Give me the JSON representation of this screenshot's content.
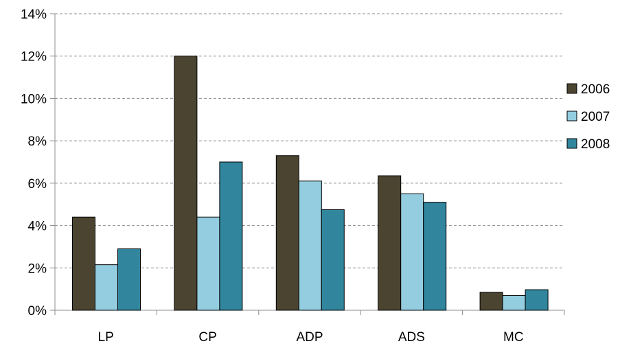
{
  "chart_data": {
    "type": "bar",
    "categories": [
      "LP",
      "CP",
      "ADP",
      "ADS",
      "MC"
    ],
    "series": [
      {
        "name": "2006",
        "values": [
          4.4,
          12.0,
          7.3,
          6.35,
          0.85
        ],
        "color": "#4b4430"
      },
      {
        "name": "2007",
        "values": [
          2.15,
          4.4,
          6.1,
          5.5,
          0.7
        ],
        "color": "#94cddf"
      },
      {
        "name": "2008",
        "values": [
          2.9,
          7.0,
          4.75,
          5.1,
          0.97
        ],
        "color": "#31859c"
      }
    ],
    "y_ticks": [
      "0%",
      "2%",
      "4%",
      "6%",
      "8%",
      "10%",
      "12%",
      "14%"
    ],
    "ylim": [
      0,
      14
    ],
    "y_unit": "%",
    "grid": true,
    "grid_style": "dashed",
    "legend_position": "right",
    "title": "",
    "xlabel": "",
    "ylabel": ""
  }
}
